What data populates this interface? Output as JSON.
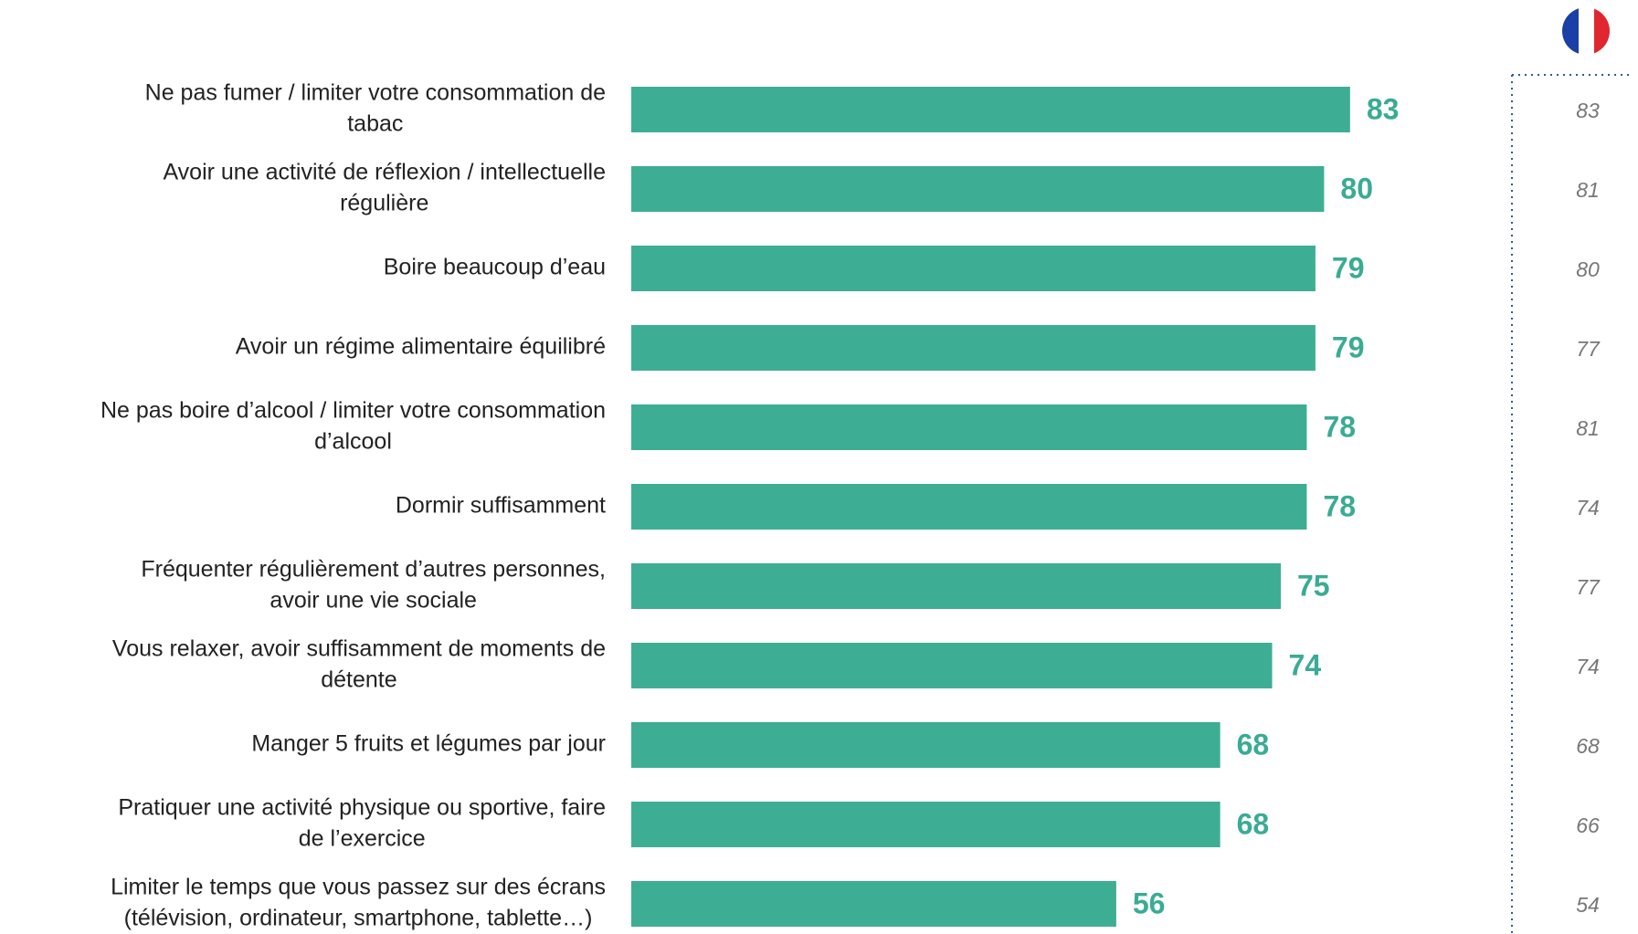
{
  "chart_data": {
    "type": "bar",
    "orientation": "horizontal",
    "color": "#3dae93",
    "categories": [
      [
        "Ne pas fumer / limiter votre consommation de",
        "tabac"
      ],
      [
        "Avoir une activité de réflexion / intellectuelle",
        "régulière"
      ],
      [
        "Boire beaucoup d’eau"
      ],
      [
        "Avoir un régime alimentaire équilibré"
      ],
      [
        "Ne pas boire d’alcool / limiter votre consommation",
        "d’alcool"
      ],
      [
        "Dormir suffisamment"
      ],
      [
        "Fréquenter régulièrement d’autres personnes,",
        "avoir une vie sociale"
      ],
      [
        "Vous relaxer, avoir suffisamment de moments de",
        "détente"
      ],
      [
        "Manger 5 fruits et légumes par jour"
      ],
      [
        "Pratiquer une activité physique ou sportive, faire",
        "de l’exercice"
      ],
      [
        "Limiter le temps que vous passez sur des écrans",
        "(télévision, ordinateur, smartphone, tablette…)"
      ]
    ],
    "values": [
      83,
      80,
      79,
      79,
      78,
      78,
      75,
      74,
      68,
      68,
      56
    ],
    "comparison_values": [
      83,
      81,
      80,
      77,
      81,
      74,
      77,
      74,
      68,
      66,
      54
    ],
    "xlim": [
      0,
      100
    ]
  }
}
